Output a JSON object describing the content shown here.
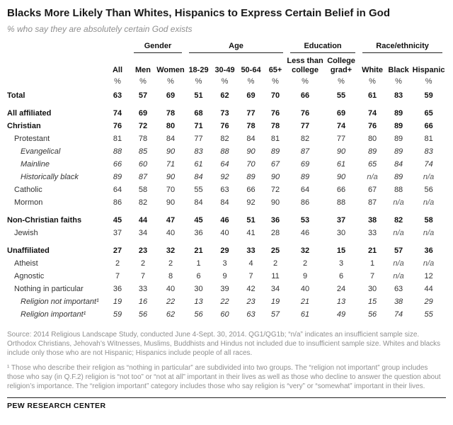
{
  "colors": {
    "title_text": "#1a1a1a",
    "muted_text": "#8f8f8f",
    "rule": "#222222"
  },
  "chart_data": {
    "type": "table",
    "title": "Blacks More Likely Than Whites, Hispanics to Express Certain Belief in God",
    "subtitle": "% who say they are absolutely certain God exists",
    "unit": "%",
    "group_headers": [
      {
        "label": "",
        "span": 2
      },
      {
        "label": "Gender",
        "span": 2
      },
      {
        "label": "Age",
        "span": 4
      },
      {
        "label": "Education",
        "span": 2
      },
      {
        "label": "Race/ethnicity",
        "span": 3
      }
    ],
    "columns": [
      "All",
      "Men",
      "Women",
      "18-29",
      "30-49",
      "50-64",
      "65+",
      "Less than college",
      "College grad+",
      "White",
      "Black",
      "Hispanic"
    ],
    "rows": [
      {
        "label": "Total",
        "style": "bold",
        "indent": 0,
        "spacer": false,
        "values": [
          "63",
          "57",
          "69",
          "51",
          "62",
          "69",
          "70",
          "66",
          "55",
          "61",
          "83",
          "59"
        ]
      },
      {
        "label": "All affiliated",
        "style": "bold",
        "indent": 0,
        "spacer": true,
        "values": [
          "74",
          "69",
          "78",
          "68",
          "73",
          "77",
          "76",
          "76",
          "69",
          "74",
          "89",
          "65"
        ]
      },
      {
        "label": "Christian",
        "style": "bold",
        "indent": 0,
        "spacer": false,
        "values": [
          "76",
          "72",
          "80",
          "71",
          "76",
          "78",
          "78",
          "77",
          "74",
          "76",
          "89",
          "66"
        ]
      },
      {
        "label": "Protestant",
        "style": "normal",
        "indent": 1,
        "spacer": false,
        "values": [
          "81",
          "78",
          "84",
          "77",
          "82",
          "84",
          "81",
          "82",
          "77",
          "80",
          "89",
          "81"
        ]
      },
      {
        "label": "Evangelical",
        "style": "italic",
        "indent": 2,
        "spacer": false,
        "values": [
          "88",
          "85",
          "90",
          "83",
          "88",
          "90",
          "89",
          "87",
          "90",
          "89",
          "89",
          "83"
        ]
      },
      {
        "label": "Mainline",
        "style": "italic",
        "indent": 2,
        "spacer": false,
        "values": [
          "66",
          "60",
          "71",
          "61",
          "64",
          "70",
          "67",
          "69",
          "61",
          "65",
          "84",
          "74"
        ]
      },
      {
        "label": "Historically black",
        "style": "italic",
        "indent": 2,
        "spacer": false,
        "values": [
          "89",
          "87",
          "90",
          "84",
          "92",
          "89",
          "90",
          "89",
          "90",
          "n/a",
          "89",
          "n/a"
        ]
      },
      {
        "label": "Catholic",
        "style": "normal",
        "indent": 1,
        "spacer": false,
        "values": [
          "64",
          "58",
          "70",
          "55",
          "63",
          "66",
          "72",
          "64",
          "66",
          "67",
          "88",
          "56"
        ]
      },
      {
        "label": "Mormon",
        "style": "normal",
        "indent": 1,
        "spacer": false,
        "values": [
          "86",
          "82",
          "90",
          "84",
          "84",
          "92",
          "90",
          "86",
          "88",
          "87",
          "n/a",
          "n/a"
        ]
      },
      {
        "label": "Non-Christian faiths",
        "style": "bold",
        "indent": 0,
        "spacer": true,
        "values": [
          "45",
          "44",
          "47",
          "45",
          "46",
          "51",
          "36",
          "53",
          "37",
          "38",
          "82",
          "58"
        ]
      },
      {
        "label": "Jewish",
        "style": "normal",
        "indent": 1,
        "spacer": false,
        "values": [
          "37",
          "34",
          "40",
          "36",
          "40",
          "41",
          "28",
          "46",
          "30",
          "33",
          "n/a",
          "n/a"
        ]
      },
      {
        "label": "Unaffiliated",
        "style": "bold",
        "indent": 0,
        "spacer": true,
        "values": [
          "27",
          "23",
          "32",
          "21",
          "29",
          "33",
          "25",
          "32",
          "15",
          "21",
          "57",
          "36"
        ]
      },
      {
        "label": "Atheist",
        "style": "normal",
        "indent": 1,
        "spacer": false,
        "values": [
          "2",
          "2",
          "2",
          "1",
          "3",
          "4",
          "2",
          "2",
          "3",
          "1",
          "n/a",
          "n/a"
        ]
      },
      {
        "label": "Agnostic",
        "style": "normal",
        "indent": 1,
        "spacer": false,
        "values": [
          "7",
          "7",
          "8",
          "6",
          "9",
          "7",
          "11",
          "9",
          "6",
          "7",
          "n/a",
          "12"
        ]
      },
      {
        "label": "Nothing in particular",
        "style": "normal",
        "indent": 1,
        "spacer": false,
        "values": [
          "36",
          "33",
          "40",
          "30",
          "39",
          "42",
          "34",
          "40",
          "24",
          "30",
          "63",
          "44"
        ]
      },
      {
        "label": "Religion not important¹",
        "style": "italic",
        "indent": 2,
        "spacer": false,
        "values": [
          "19",
          "16",
          "22",
          "13",
          "22",
          "23",
          "19",
          "21",
          "13",
          "15",
          "38",
          "29"
        ]
      },
      {
        "label": "Religion important¹",
        "style": "italic",
        "indent": 2,
        "spacer": false,
        "values": [
          "59",
          "56",
          "62",
          "56",
          "60",
          "63",
          "57",
          "61",
          "49",
          "56",
          "74",
          "55"
        ]
      }
    ]
  },
  "source": "Source: 2014 Religious Landscape Study, conducted June 4-Sept. 30, 2014. QG1/QG1b; “n/a” indicates an insufficient sample size. Orthodox Christians, Jehovah’s Witnesses, Muslims, Buddhists and Hindus not included due to insufficient sample size. Whites and blacks include only those who are not Hispanic; Hispanics include people of all races.",
  "footnote": "¹ Those who describe their religion as “nothing in particular” are subdivided into two groups. The “religion not important” group includes those who say (in Q.F.2) religion is “not too” or “not at all” important in their lives as well as those who decline to answer the question about religion’s importance. The “religion important” category includes those who say religion is “very” or “somewhat” important in their lives.",
  "footer": "PEW RESEARCH CENTER"
}
